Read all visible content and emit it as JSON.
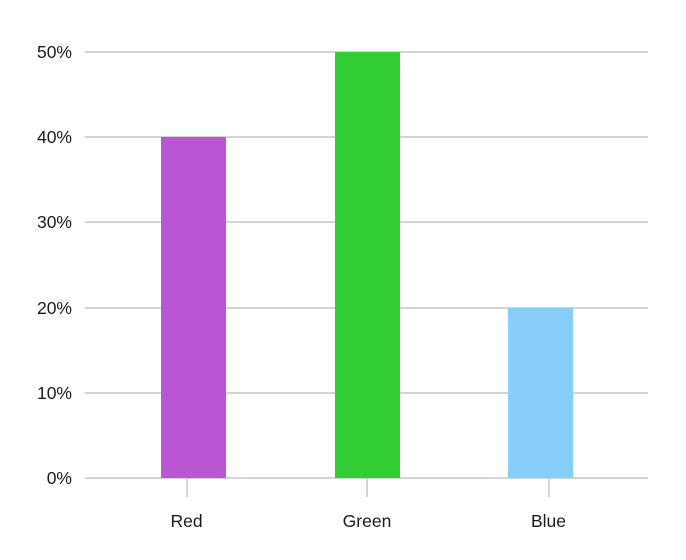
{
  "chart_data": {
    "type": "bar",
    "categories": [
      "Red",
      "Green",
      "Blue"
    ],
    "values": [
      40,
      50,
      20
    ],
    "value_unit": "%",
    "ylim": [
      0,
      50
    ],
    "y_ticks": [
      0,
      10,
      20,
      30,
      40,
      50
    ],
    "y_tick_labels": [
      "0%",
      "10%",
      "20%",
      "30%",
      "40%",
      "50%"
    ],
    "bar_colors": [
      "#ba55d3",
      "#32cd32",
      "#87cefa"
    ],
    "grid": true,
    "gridline_color": "#d3d3d3",
    "axis_tick_color": "#d3d3d3",
    "axis_text_color": "#1a1a1a",
    "background_color": "#ffffff",
    "legend": false,
    "title": ""
  }
}
